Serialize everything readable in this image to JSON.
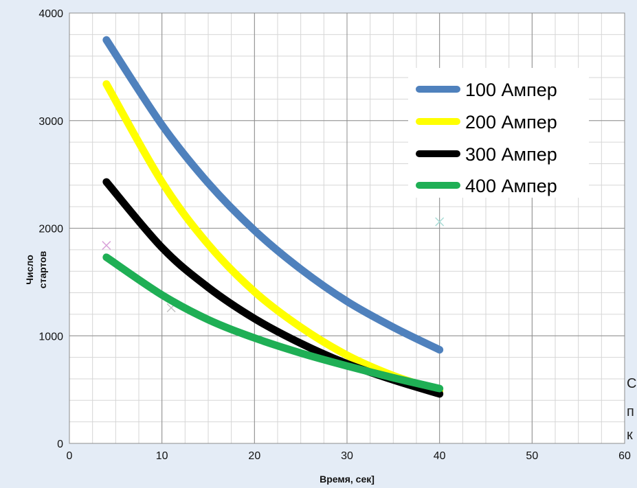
{
  "chart_data": {
    "type": "line",
    "xlabel": "Время, сек]",
    "ylabel_lines": [
      "Число",
      "стартов"
    ],
    "xlim": [
      0,
      60
    ],
    "ylim": [
      0,
      4000
    ],
    "x_ticks": [
      0,
      10,
      20,
      30,
      40,
      50,
      60
    ],
    "y_ticks": [
      0,
      1000,
      2000,
      3000,
      4000
    ],
    "x_tick_labels": [
      "0",
      "10",
      "20",
      "30",
      "40",
      "50",
      "60"
    ],
    "y_tick_labels": [
      "0",
      "1000",
      "2000",
      "3000",
      "4000"
    ],
    "grid": true,
    "legend_position": "top-right",
    "series": [
      {
        "name": "100 Ампер",
        "color": "#4f81bd",
        "x": [
          4,
          10,
          15,
          20,
          25,
          30,
          35,
          40
        ],
        "y": [
          3750,
          2960,
          2420,
          1980,
          1620,
          1320,
          1080,
          870
        ]
      },
      {
        "name": "200 Ампер",
        "color": "#ffff00",
        "x": [
          4,
          10,
          15,
          20,
          25,
          30,
          35,
          40
        ],
        "y": [
          3340,
          2430,
          1850,
          1410,
          1080,
          820,
          630,
          490
        ]
      },
      {
        "name": "300 Ампер",
        "color": "#000000",
        "x": [
          4,
          10,
          15,
          20,
          25,
          30,
          35,
          40
        ],
        "y": [
          2430,
          1820,
          1450,
          1160,
          930,
          740,
          590,
          460
        ]
      },
      {
        "name": "400 Ампер",
        "color": "#1faf55",
        "x": [
          4,
          10,
          15,
          20,
          25,
          30,
          35,
          40
        ],
        "y": [
          1730,
          1380,
          1150,
          980,
          840,
          720,
          610,
          510
        ]
      }
    ],
    "faint_markers": [
      {
        "x": 4,
        "y": 1840,
        "color": "#d9a3d9"
      },
      {
        "x": 11,
        "y": 1260,
        "color": "#c2c2c2"
      },
      {
        "x": 40,
        "y": 2060,
        "color": "#a8dcd6"
      }
    ]
  },
  "side_note_lines": [
    "С",
    "п",
    "к"
  ]
}
